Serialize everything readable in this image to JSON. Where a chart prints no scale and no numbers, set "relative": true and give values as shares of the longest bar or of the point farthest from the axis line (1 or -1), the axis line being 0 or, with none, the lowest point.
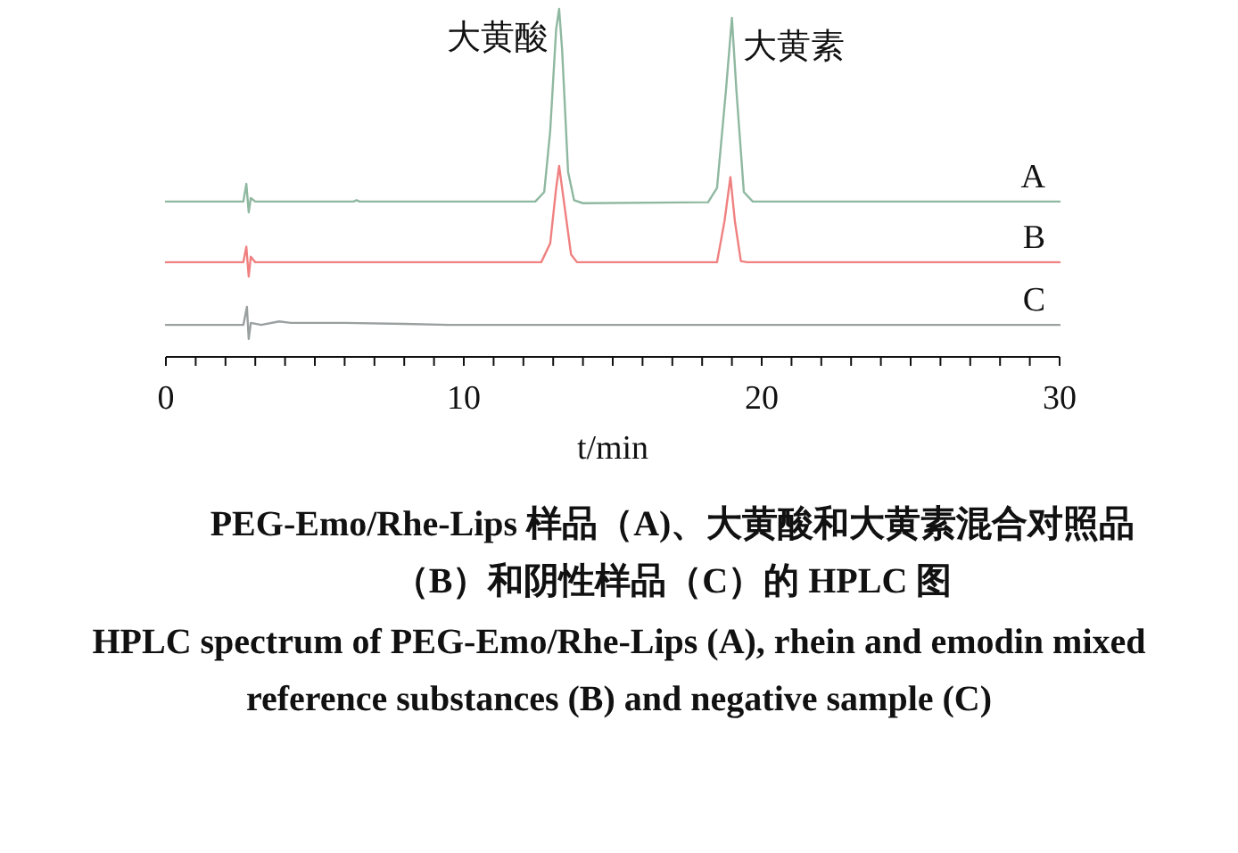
{
  "chart_data": [
    {
      "type": "line",
      "relative": true,
      "xlim": [
        0,
        30
      ],
      "tick_labels": false,
      "x": [
        0,
        2.6,
        2.7,
        2.78,
        2.85,
        3,
        6.3,
        6.4,
        6.5,
        12.4,
        12.7,
        12.9,
        13.1,
        13.2,
        13.3,
        13.5,
        13.7,
        14,
        18.2,
        18.5,
        18.8,
        19,
        19.15,
        19.4,
        19.7,
        30
      ],
      "series": [
        {
          "name": "A",
          "color": "#8fb8a0",
          "values": [
            0.053,
            0.053,
            0.14,
            0,
            0.07,
            0.053,
            0.053,
            0.06,
            0.053,
            0.053,
            0.1,
            0.4,
            0.9,
            1,
            0.8,
            0.2,
            0.06,
            0.045,
            0.05,
            0.12,
            0.6,
            0.956,
            0.6,
            0.1,
            0.053,
            0.053
          ]
        }
      ],
      "annotations": [
        {
          "text": "大黄酸",
          "x": 13.2,
          "y": 1
        },
        {
          "text": "大黄素",
          "x": 19,
          "y": 0.956
        }
      ]
    },
    {
      "type": "line",
      "relative": true,
      "xlim": [
        0,
        30
      ],
      "tick_labels": false,
      "x": [
        0,
        2.6,
        2.7,
        2.78,
        2.85,
        3,
        12.6,
        12.9,
        13.1,
        13.2,
        13.35,
        13.6,
        13.8,
        18.5,
        18.75,
        18.95,
        19.1,
        19.3,
        19.5,
        30
      ],
      "series": [
        {
          "name": "B",
          "color": "#f08080",
          "values": [
            0.13,
            0.13,
            0.27,
            0,
            0.18,
            0.13,
            0.13,
            0.3,
            0.8,
            1,
            0.7,
            0.2,
            0.13,
            0.13,
            0.5,
            0.9,
            0.5,
            0.14,
            0.13,
            0.13
          ]
        }
      ]
    },
    {
      "type": "line",
      "relative": true,
      "xlim": [
        0,
        30
      ],
      "tick_labels": "x",
      "xlabel": "t/min",
      "x": [
        0,
        2.6,
        2.72,
        2.78,
        2.85,
        3.2,
        3.8,
        4.2,
        6,
        8,
        9.5,
        30
      ],
      "xticks": [
        0,
        {
          "value": 1,
          "label": null
        },
        {
          "value": 2,
          "label": null
        },
        {
          "value": 3,
          "label": null
        },
        {
          "value": 4,
          "label": null
        },
        {
          "value": 5,
          "label": null
        },
        {
          "value": 6,
          "label": null
        },
        {
          "value": 7,
          "label": null
        },
        {
          "value": 8,
          "label": null
        },
        {
          "value": 9,
          "label": null
        },
        10,
        {
          "value": 11,
          "label": null
        },
        {
          "value": 12,
          "label": null
        },
        {
          "value": 13,
          "label": null
        },
        {
          "value": 14,
          "label": null
        },
        {
          "value": 15,
          "label": null
        },
        {
          "value": 16,
          "label": null
        },
        {
          "value": 17,
          "label": null
        },
        {
          "value": 18,
          "label": null
        },
        {
          "value": 19,
          "label": null
        },
        20,
        {
          "value": 21,
          "label": null
        },
        {
          "value": 22,
          "label": null
        },
        {
          "value": 23,
          "label": null
        },
        {
          "value": 24,
          "label": null
        },
        {
          "value": 25,
          "label": null
        },
        {
          "value": 26,
          "label": null
        },
        {
          "value": 27,
          "label": null
        },
        {
          "value": 28,
          "label": null
        },
        {
          "value": 29,
          "label": null
        },
        30
      ],
      "series": [
        {
          "name": "C",
          "color": "#9aa0a0",
          "values": [
            0.64,
            0.64,
            1,
            0.36,
            0.68,
            0.64,
            0.71,
            0.68,
            0.68,
            0.66,
            0.64,
            0.64
          ]
        }
      ],
      "annotations": [
        "PEG-Emo/Rhe-Lips 样品（A)、大黄酸和大黄素混合对照品（B）和阴性样品（C）的 HPLC 图",
        "HPLC spectrum of PEG-Emo/Rhe-Lips (A), rhein and emodin mixed reference substances (B) and negative sample (C)"
      ]
    }
  ]
}
